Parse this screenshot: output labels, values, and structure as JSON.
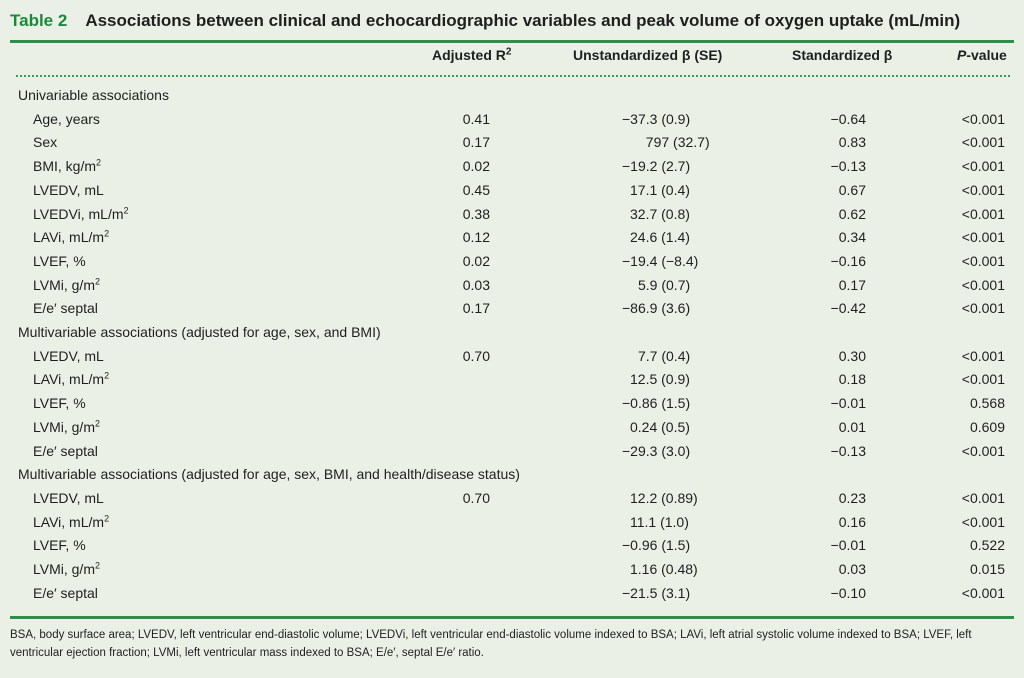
{
  "title": {
    "number": "Table 2",
    "text": "Associations between clinical and echocardiographic variables and peak volume of oxygen uptake (mL/min)"
  },
  "headers": {
    "r2_main": "Adjusted R",
    "r2_sup": "2",
    "beta": "Unstandardized β (SE)",
    "std": "Standardized β",
    "p_italic": "P",
    "p_rest": "-value"
  },
  "rows": [
    {
      "type": "section",
      "label": "Univariable associations"
    },
    {
      "type": "data",
      "label": "Age, years",
      "sup": "",
      "r2": "0.41",
      "beta": "−37.3 (0.9)",
      "std": "−0.64",
      "p": "<0.001"
    },
    {
      "type": "data",
      "label": "Sex",
      "sup": "",
      "r2": "0.17",
      "beta": "  797 (32.7)",
      "std": "0.83",
      "p": "<0.001"
    },
    {
      "type": "data",
      "label": "BMI, kg/m",
      "sup": "2",
      "r2": "0.02",
      "beta": "−19.2 (2.7)",
      "std": "−0.13",
      "p": "<0.001"
    },
    {
      "type": "data",
      "label": "LVEDV, mL",
      "sup": "",
      "r2": "0.45",
      "beta": "17.1 (0.4)",
      "std": "0.67",
      "p": "<0.001"
    },
    {
      "type": "data",
      "label": "LVEDVi, mL/m",
      "sup": "2",
      "r2": "0.38",
      "beta": "32.7 (0.8)",
      "std": "0.62",
      "p": "<0.001"
    },
    {
      "type": "data",
      "label": "LAVi, mL/m",
      "sup": "2",
      "r2": "0.12",
      "beta": "24.6 (1.4)",
      "std": "0.34",
      "p": "<0.001"
    },
    {
      "type": "data",
      "label": "LVEF, %",
      "sup": "",
      "r2": "0.02",
      "beta": "−19.4 (−8.4)",
      "std": "−0.16",
      "p": "<0.001"
    },
    {
      "type": "data",
      "label": "LVMi, g/m",
      "sup": "2",
      "r2": "0.03",
      "beta": "5.9 (0.7)",
      "std": "0.17",
      "p": "<0.001"
    },
    {
      "type": "data",
      "label": "E/e′ septal",
      "sup": "",
      "r2": "0.17",
      "beta": "−86.9 (3.6)",
      "std": "−0.42",
      "p": "<0.001"
    },
    {
      "type": "section",
      "label": "Multivariable associations (adjusted for age, sex, and BMI)"
    },
    {
      "type": "data",
      "label": "LVEDV, mL",
      "sup": "",
      "r2": "0.70",
      "beta": "7.7 (0.4)",
      "std": "0.30",
      "p": "<0.001"
    },
    {
      "type": "data",
      "label": "LAVi, mL/m",
      "sup": "2",
      "r2": "",
      "beta": "12.5 (0.9)",
      "std": "0.18",
      "p": "<0.001"
    },
    {
      "type": "data",
      "label": "LVEF, %",
      "sup": "",
      "r2": "",
      "beta": "−0.86 (1.5)",
      "std": "−0.01",
      "p": "0.568"
    },
    {
      "type": "data",
      "label": "LVMi, g/m",
      "sup": "2",
      "r2": "",
      "beta": "0.24 (0.5)",
      "std": "0.01",
      "p": "0.609"
    },
    {
      "type": "data",
      "label": "E/e′ septal",
      "sup": "",
      "r2": "",
      "beta": "−29.3 (3.0)",
      "std": "−0.13",
      "p": "<0.001"
    },
    {
      "type": "section",
      "label": "Multivariable associations (adjusted for age, sex, BMI, and health/disease status)"
    },
    {
      "type": "data",
      "label": "LVEDV, mL",
      "sup": "",
      "r2": "0.70",
      "beta": "12.2 (0.89)",
      "std": "0.23",
      "p": "<0.001"
    },
    {
      "type": "data",
      "label": "LAVi, mL/m",
      "sup": "2",
      "r2": "",
      "beta": "11.1 (1.0)",
      "std": "0.16",
      "p": "<0.001"
    },
    {
      "type": "data",
      "label": "LVEF, %",
      "sup": "",
      "r2": "",
      "beta": "−0.96 (1.5)",
      "std": "−0.01",
      "p": "0.522"
    },
    {
      "type": "data",
      "label": "LVMi, g/m",
      "sup": "2",
      "r2": "",
      "beta": "1.16 (0.48)",
      "std": "0.03",
      "p": "0.015"
    },
    {
      "type": "data",
      "label": "E/e′ septal",
      "sup": "",
      "r2": "",
      "beta": "−21.5 (3.1)",
      "std": "−0.10",
      "p": "<0.001"
    }
  ],
  "footnote": "BSA, body surface area; LVEDV, left ventricular end-diastolic volume; LVEDVi, left ventricular end-diastolic volume indexed to BSA; LAVi, left atrial systolic volume indexed to BSA; LVEF, left ventricular ejection fraction; LVMi, left ventricular mass indexed to BSA; E/e′, septal E/e′ ratio.",
  "colors": {
    "accent_green": "#2f8f4a",
    "title_number": "#1a8a3a",
    "background": "#ebf0e6"
  }
}
